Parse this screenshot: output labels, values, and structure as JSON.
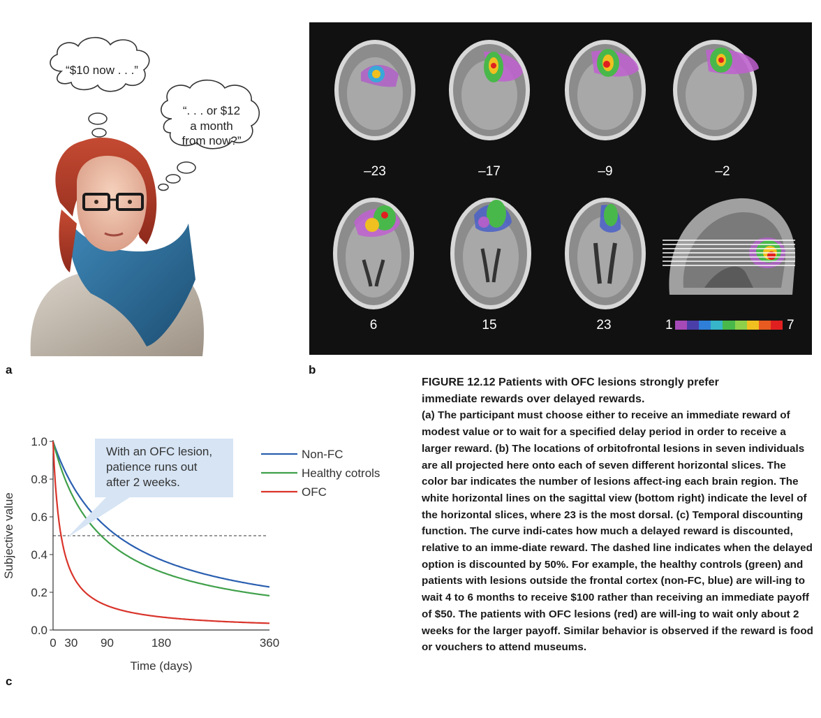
{
  "panel_labels": {
    "a": "a",
    "b": "b",
    "c": "c"
  },
  "panel_a": {
    "bubble1": "“$10 now . . .”",
    "bubble2_lines": [
      "“. . . or $12",
      "a month",
      "from now?”"
    ]
  },
  "panel_b": {
    "slices_top": [
      "–23",
      "–17",
      "–9",
      "–2"
    ],
    "slices_bottom": [
      "6",
      "15",
      "23"
    ],
    "colorbar_min": "1",
    "colorbar_max": "7",
    "colorbar_colors": [
      "#a64ab8",
      "#4a3fa8",
      "#2f7fd8",
      "#36b6c8",
      "#49b84a",
      "#8ed04a",
      "#f0c020",
      "#e85a20",
      "#e02020"
    ]
  },
  "chart_data": {
    "type": "line",
    "title": "",
    "xlabel": "Time (days)",
    "ylabel": "Subjective value",
    "xlim": [
      0,
      360
    ],
    "ylim": [
      0,
      1.0
    ],
    "x_ticks": [
      "0",
      "30",
      "90",
      "180",
      "360"
    ],
    "x_tick_values": [
      0,
      30,
      90,
      180,
      360
    ],
    "y_ticks": [
      "0.0",
      "0.2",
      "0.4",
      "0.6",
      "0.8",
      "1.0"
    ],
    "y_tick_values": [
      0,
      0.2,
      0.4,
      0.6,
      0.8,
      1.0
    ],
    "series": [
      {
        "name": "Non-FC",
        "color": "#2a5fb0",
        "k": 0.0094
      },
      {
        "name": "Healthy cotrols",
        "color": "#3fa04a",
        "k": 0.0125
      },
      {
        "name": "OFC",
        "color": "#d9342b",
        "k": 0.075
      }
    ],
    "dashed_line_y": 0.5,
    "callout": [
      "With an OFC lesion,",
      "patience runs out",
      "after 2 weeks."
    ],
    "callout_color": "#d6e4f4"
  },
  "caption": {
    "title_line1": "FIGURE 12.12 Patients with OFC lesions strongly prefer",
    "title_line2": "immediate rewards over delayed rewards.",
    "part_a_label": "(a)",
    "part_a_text": " The participant must choose either to receive an immediate reward of modest value or to wait for a specified delay period in order to receive a larger reward.",
    "part_b_label": " (b)",
    "part_b_text": " The locations of orbitofrontal lesions in seven individuals are all projected here onto each of seven different horizontal slices. The color bar indicates the number of lesions affect-ing each brain region. The white horizontal lines on the sagittal view (bottom right) indicate the level of the horizontal slices, where 23 is the most dorsal.",
    "part_c_label": " (c)",
    "part_c_text": " Temporal discounting function. The curve indi-cates how much a delayed reward is discounted, relative to an imme-diate reward. The dashed line indicates when the delayed option is discounted by 50%. For example, the healthy controls (green) and patients with lesions outside the frontal cortex (non-FC, blue) are will-ing to wait 4 to 6 months to receive $100 rather than receiving an immediate payoff of $50. The patients with OFC lesions (red) are will-ing to wait only about 2 weeks for the larger payoff. Similar behavior is observed if the reward is food or vouchers to attend museums."
  }
}
